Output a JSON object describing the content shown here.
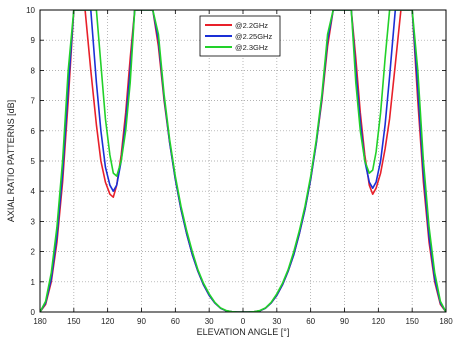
{
  "chart_data": {
    "type": "line",
    "title": "",
    "xlabel": "ELEVATION ANGLE [°]",
    "ylabel": "AXIAL RATIO PATTERNS [dB]",
    "xlim": [
      -180,
      180
    ],
    "ylim": [
      0,
      10
    ],
    "x_ticks": [
      -180,
      -150,
      -120,
      -90,
      -60,
      -30,
      0,
      30,
      60,
      90,
      120,
      150,
      180
    ],
    "x_tick_labels": [
      "180",
      "150",
      "120",
      "90",
      "60",
      "30",
      "0",
      "30",
      "60",
      "90",
      "120",
      "150",
      "180"
    ],
    "y_ticks": [
      0,
      1,
      2,
      3,
      4,
      5,
      6,
      7,
      8,
      9,
      10
    ],
    "y_tick_labels": [
      "0",
      "1",
      "2",
      "3",
      "4",
      "5",
      "6",
      "7",
      "8",
      "9",
      "10"
    ],
    "grid": true,
    "legend_position": "top-center",
    "series": [
      {
        "name": "@2.2GHz",
        "color": "#e8202a",
        "x": [
          -180,
          -175,
          -170,
          -165,
          -160,
          -155,
          -150,
          -147,
          -144,
          -140,
          -135,
          -130,
          -126,
          -122,
          -118,
          -115,
          -112,
          -108,
          -104,
          -100,
          -96,
          -92,
          -88,
          -84,
          -80,
          -75,
          -70,
          -65,
          -60,
          -55,
          -50,
          -45,
          -40,
          -35,
          -30,
          -25,
          -20,
          -15,
          -10,
          -5,
          0,
          5,
          10,
          15,
          20,
          25,
          30,
          35,
          40,
          45,
          50,
          55,
          60,
          65,
          70,
          75,
          80,
          84,
          88,
          92,
          96,
          100,
          104,
          108,
          112,
          115,
          118,
          122,
          126,
          130,
          135,
          140,
          144,
          147,
          150,
          155,
          160,
          165,
          170,
          175,
          180
        ],
        "y": [
          0,
          0.25,
          1.0,
          2.3,
          4.3,
          7.0,
          10.0,
          10.0,
          10.0,
          10.0,
          8.0,
          6.2,
          5.0,
          4.3,
          3.9,
          3.8,
          4.2,
          5.2,
          6.6,
          8.4,
          10.0,
          10.0,
          10.0,
          10.0,
          10.0,
          8.8,
          7.0,
          5.6,
          4.4,
          3.4,
          2.6,
          1.9,
          1.35,
          0.9,
          0.55,
          0.3,
          0.13,
          0.04,
          0.01,
          0.0,
          0.0,
          0.0,
          0.01,
          0.04,
          0.13,
          0.3,
          0.55,
          0.9,
          1.35,
          1.9,
          2.6,
          3.4,
          4.4,
          5.6,
          7.0,
          8.8,
          10.0,
          10.0,
          10.0,
          10.0,
          10.0,
          8.4,
          6.6,
          5.2,
          4.2,
          3.9,
          4.1,
          4.6,
          5.4,
          6.4,
          8.2,
          10.0,
          10.0,
          10.0,
          10.0,
          7.0,
          4.3,
          2.3,
          1.0,
          0.25,
          0
        ]
      },
      {
        "name": "@2.25GHz",
        "color": "#1a2fd6",
        "x": [
          -180,
          -175,
          -170,
          -165,
          -160,
          -155,
          -150,
          -147,
          -144,
          -140,
          -135,
          -130,
          -126,
          -122,
          -118,
          -115,
          -112,
          -108,
          -104,
          -100,
          -96,
          -92,
          -88,
          -84,
          -80,
          -75,
          -70,
          -65,
          -60,
          -55,
          -50,
          -45,
          -40,
          -35,
          -30,
          -25,
          -20,
          -15,
          -10,
          -5,
          0,
          5,
          10,
          15,
          20,
          25,
          30,
          35,
          40,
          45,
          50,
          55,
          60,
          65,
          70,
          75,
          80,
          84,
          88,
          92,
          96,
          100,
          104,
          108,
          112,
          115,
          118,
          122,
          126,
          130,
          135,
          140,
          144,
          147,
          150,
          155,
          160,
          165,
          170,
          175,
          180
        ],
        "y": [
          0,
          0.3,
          1.1,
          2.5,
          4.6,
          7.4,
          10.0,
          10.0,
          10.0,
          10.0,
          10.0,
          7.6,
          6.0,
          4.8,
          4.2,
          4.0,
          4.2,
          5.0,
          6.3,
          8.0,
          10.0,
          10.0,
          10.0,
          10.0,
          10.0,
          9.0,
          7.1,
          5.6,
          4.4,
          3.4,
          2.6,
          1.9,
          1.35,
          0.9,
          0.55,
          0.3,
          0.13,
          0.04,
          0.01,
          0.0,
          0.0,
          0.0,
          0.01,
          0.04,
          0.13,
          0.3,
          0.55,
          0.9,
          1.35,
          1.9,
          2.6,
          3.4,
          4.4,
          5.6,
          7.1,
          9.0,
          10.0,
          10.0,
          10.0,
          10.0,
          10.0,
          8.0,
          6.3,
          5.0,
          4.3,
          4.1,
          4.3,
          5.0,
          6.2,
          7.8,
          10.0,
          10.0,
          10.0,
          10.0,
          10.0,
          7.4,
          4.6,
          2.5,
          1.1,
          0.3,
          0
        ]
      },
      {
        "name": "@2.3GHz",
        "color": "#22d12a",
        "x": [
          -180,
          -175,
          -170,
          -165,
          -160,
          -155,
          -150,
          -147,
          -144,
          -140,
          -135,
          -130,
          -126,
          -122,
          -118,
          -115,
          -112,
          -108,
          -104,
          -100,
          -96,
          -92,
          -88,
          -84,
          -80,
          -75,
          -70,
          -65,
          -60,
          -55,
          -50,
          -45,
          -40,
          -35,
          -30,
          -25,
          -20,
          -15,
          -10,
          -5,
          0,
          5,
          10,
          15,
          20,
          25,
          30,
          35,
          40,
          45,
          50,
          55,
          60,
          65,
          70,
          75,
          80,
          84,
          88,
          92,
          96,
          100,
          104,
          108,
          112,
          115,
          118,
          122,
          126,
          130,
          135,
          140,
          144,
          147,
          150,
          155,
          160,
          165,
          170,
          175,
          180
        ],
        "y": [
          0,
          0.35,
          1.3,
          2.8,
          5.0,
          8.0,
          10.0,
          10.0,
          10.0,
          10.0,
          10.0,
          10.0,
          8.2,
          6.4,
          5.2,
          4.6,
          4.5,
          5.0,
          6.0,
          7.6,
          10.0,
          10.0,
          10.0,
          10.0,
          10.0,
          9.2,
          7.2,
          5.7,
          4.5,
          3.5,
          2.7,
          2.0,
          1.4,
          0.95,
          0.6,
          0.32,
          0.14,
          0.05,
          0.01,
          0.0,
          0.0,
          0.0,
          0.01,
          0.05,
          0.14,
          0.32,
          0.6,
          0.95,
          1.4,
          2.0,
          2.7,
          3.5,
          4.5,
          5.7,
          7.2,
          9.2,
          10.0,
          10.0,
          10.0,
          10.0,
          10.0,
          7.6,
          6.0,
          5.0,
          4.6,
          4.7,
          5.3,
          6.6,
          8.4,
          10.0,
          10.0,
          10.0,
          10.0,
          10.0,
          10.0,
          8.0,
          5.0,
          2.8,
          1.3,
          0.35,
          0
        ]
      }
    ]
  }
}
